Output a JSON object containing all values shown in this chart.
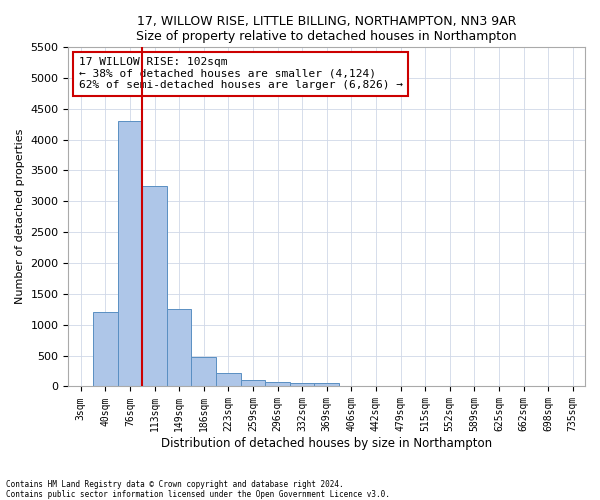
{
  "title1": "17, WILLOW RISE, LITTLE BILLING, NORTHAMPTON, NN3 9AR",
  "title2": "Size of property relative to detached houses in Northampton",
  "xlabel": "Distribution of detached houses by size in Northampton",
  "ylabel": "Number of detached properties",
  "footnote1": "Contains HM Land Registry data © Crown copyright and database right 2024.",
  "footnote2": "Contains public sector information licensed under the Open Government Licence v3.0.",
  "annotation_title": "17 WILLOW RISE: 102sqm",
  "annotation_line1": "← 38% of detached houses are smaller (4,124)",
  "annotation_line2": "62% of semi-detached houses are larger (6,826) →",
  "bar_labels": [
    "3sqm",
    "40sqm",
    "76sqm",
    "113sqm",
    "149sqm",
    "186sqm",
    "223sqm",
    "259sqm",
    "296sqm",
    "332sqm",
    "369sqm",
    "406sqm",
    "442sqm",
    "479sqm",
    "515sqm",
    "552sqm",
    "589sqm",
    "625sqm",
    "662sqm",
    "698sqm",
    "735sqm"
  ],
  "bar_values": [
    0,
    1200,
    4300,
    3250,
    1250,
    480,
    220,
    100,
    75,
    55,
    50,
    0,
    0,
    0,
    0,
    0,
    0,
    0,
    0,
    0,
    0
  ],
  "bar_color": "#aec6e8",
  "bar_edge_color": "#5a8fc2",
  "vline_color": "#cc0000",
  "vline_x": 2.5,
  "ylim": [
    0,
    5500
  ],
  "yticks": [
    0,
    500,
    1000,
    1500,
    2000,
    2500,
    3000,
    3500,
    4000,
    4500,
    5000,
    5500
  ],
  "annotation_box_edgecolor": "#cc0000",
  "bg_color": "white",
  "grid_color": "#d0d8e8",
  "spine_color": "#aaaaaa"
}
